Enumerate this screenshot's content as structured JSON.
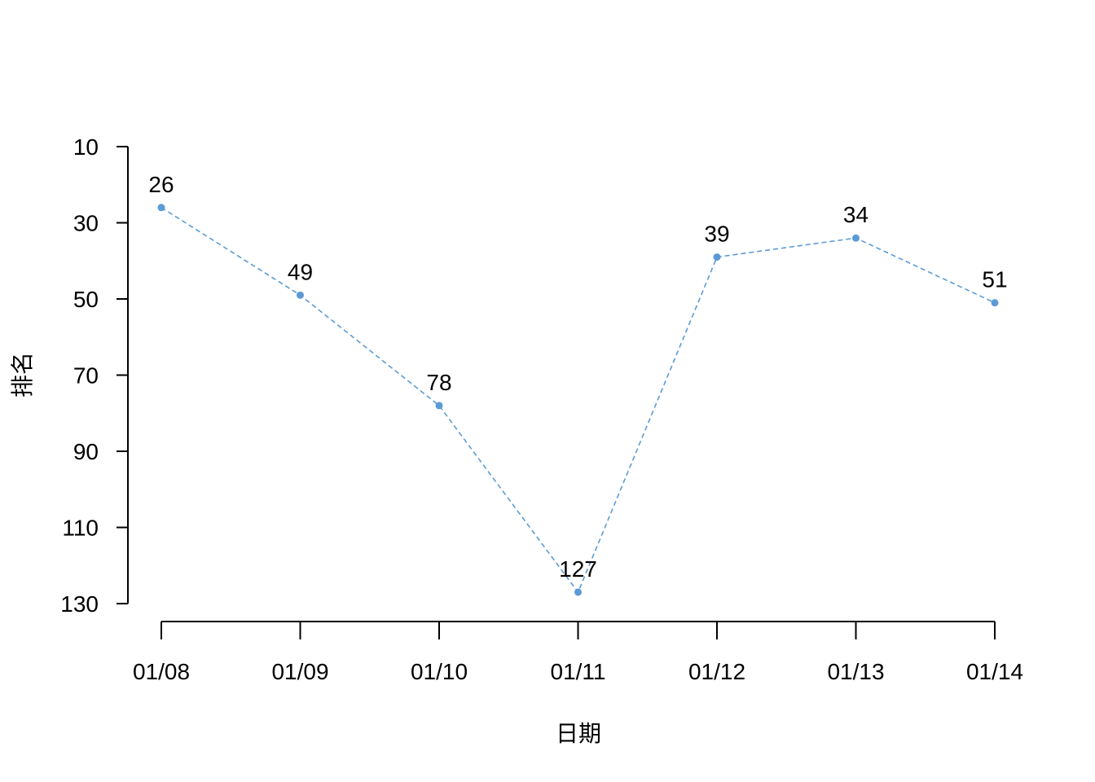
{
  "chart_data": {
    "type": "line",
    "title": "",
    "xlabel": "日期",
    "ylabel": "排名",
    "categories": [
      "01/08",
      "01/09",
      "01/10",
      "01/11",
      "01/12",
      "01/13",
      "01/14"
    ],
    "series": [
      {
        "values": [
          26,
          49,
          78,
          127,
          39,
          34,
          51
        ]
      }
    ],
    "data_labels": [
      "26",
      "49",
      "78",
      "127",
      "39",
      "34",
      "51"
    ],
    "y_ticks": [
      10,
      30,
      50,
      70,
      90,
      110,
      130
    ],
    "y_tick_labels": [
      "10",
      "30",
      "50",
      "70",
      "90",
      "110",
      "130"
    ],
    "ylim": [
      10,
      130
    ],
    "y_reversed": true,
    "line_style": "dashed",
    "markers": true,
    "grid": false,
    "legend": "none",
    "colors": {
      "series": "#5B9BD5",
      "axis": "#000000",
      "text": "#000000"
    }
  }
}
